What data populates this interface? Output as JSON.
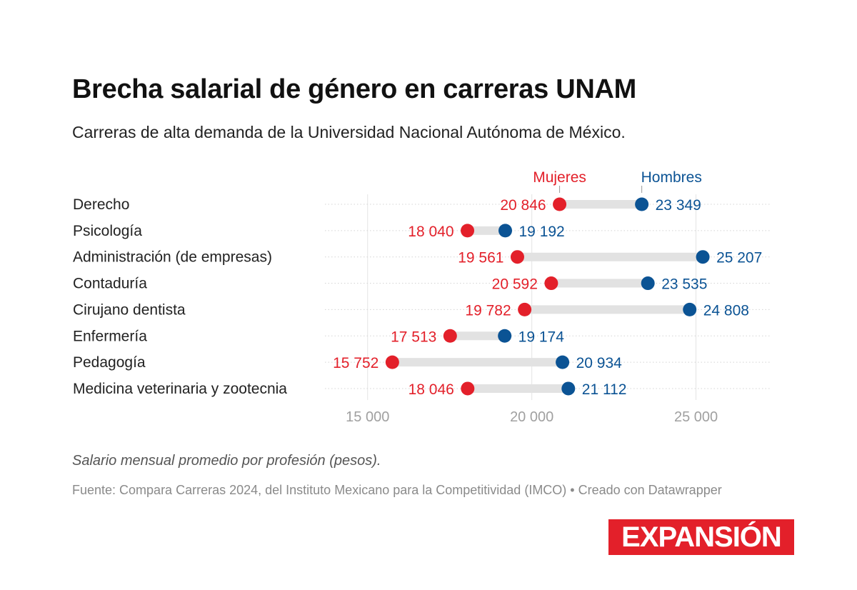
{
  "title": "Brecha salarial de género en carreras UNAM",
  "subtitle": "Carreras de alta demanda de la Universidad Nacional Autónoma de México.",
  "notes": "Salario mensual promedio por profesión (pesos).",
  "source": "Fuente: Compara Carreras 2024, del Instituto Mexicano para la Competitividad (IMCO) • Creado con Datawrapper",
  "logo": "EXPANSIÓN",
  "chart_data": {
    "type": "range-dot",
    "xlim": [
      13700,
      27250
    ],
    "xticks": [
      15000,
      20000,
      25000
    ],
    "xtick_labels": [
      "15 000",
      "20 000",
      "25 000"
    ],
    "grid": true,
    "colors": {
      "Mujeres": "#e3202a",
      "Hombres": "#0b5394",
      "bar": "#e2e2e2"
    },
    "series": [
      {
        "name": "Mujeres",
        "values": [
          20846,
          18040,
          19561,
          20592,
          19782,
          17513,
          15752,
          18046
        ],
        "labels": [
          "20 846",
          "18 040",
          "19 561",
          "20 592",
          "19 782",
          "17 513",
          "15 752",
          "18 046"
        ]
      },
      {
        "name": "Hombres",
        "values": [
          23349,
          19192,
          25207,
          23535,
          24808,
          19174,
          20934,
          21112
        ],
        "labels": [
          "23 349",
          "19 192",
          "25 207",
          "23 535",
          "24 808",
          "19 174",
          "20 934",
          "21 112"
        ]
      }
    ],
    "categories": [
      "Derecho",
      "Psicología",
      "Administración (de empresas)",
      "Contaduría",
      "Cirujano dentista",
      "Enfermería",
      "Pedagogía",
      "Medicina veterinaria y zootecnia"
    ]
  }
}
